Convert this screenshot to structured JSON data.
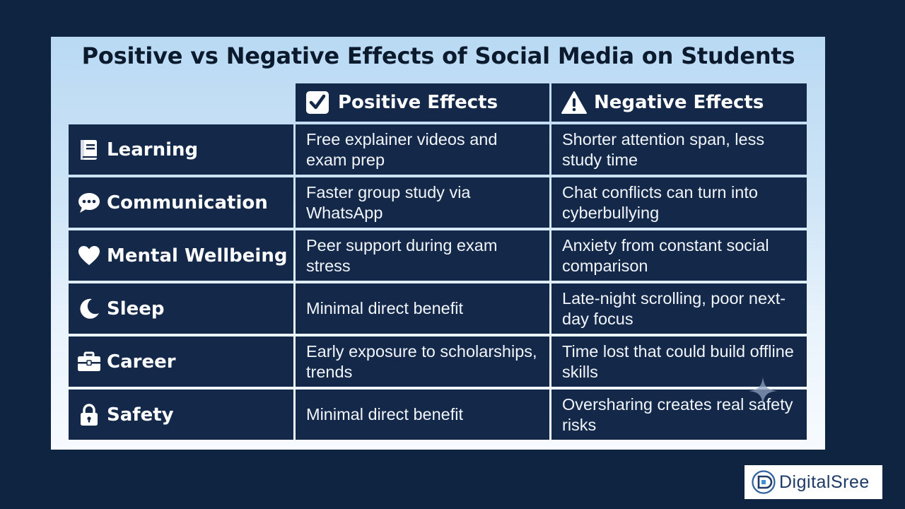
{
  "title": "Positive vs Negative Effects of Social Media on Students",
  "headers": {
    "positive": "Positive Effects",
    "positive_icon": "check-icon",
    "negative": "Negative Effects",
    "negative_icon": "warning-icon"
  },
  "rows": [
    {
      "label": "Learning",
      "icon": "book-icon",
      "positive": "Free explainer videos and exam prep",
      "negative": "Shorter attention span, less study time"
    },
    {
      "label": "Communication",
      "icon": "chat-icon",
      "positive": "Faster group study via WhatsApp",
      "negative": "Chat conflicts can turn into cyberbullying"
    },
    {
      "label": "Mental Wellbeing",
      "icon": "heart-icon",
      "positive": "Peer support during exam stress",
      "negative": "Anxiety from constant social comparison"
    },
    {
      "label": "Sleep",
      "icon": "moon-icon",
      "positive": "Minimal direct benefit",
      "negative": "Late-night scrolling, poor next-day focus"
    },
    {
      "label": "Career",
      "icon": "briefcase-icon",
      "positive": "Early exposure to scholarships, trends",
      "negative": "Time lost that could build offline skills"
    },
    {
      "label": "Safety",
      "icon": "lock-icon",
      "positive": "Minimal direct benefit",
      "negative": "Oversharing creates real safety risks"
    }
  ],
  "logo": {
    "text": "DigitalSree",
    "icon": "digitalsree-logo-icon"
  },
  "colors": {
    "background": "#0f2440",
    "cell": "#14294a",
    "title": "#0b1a2d"
  }
}
